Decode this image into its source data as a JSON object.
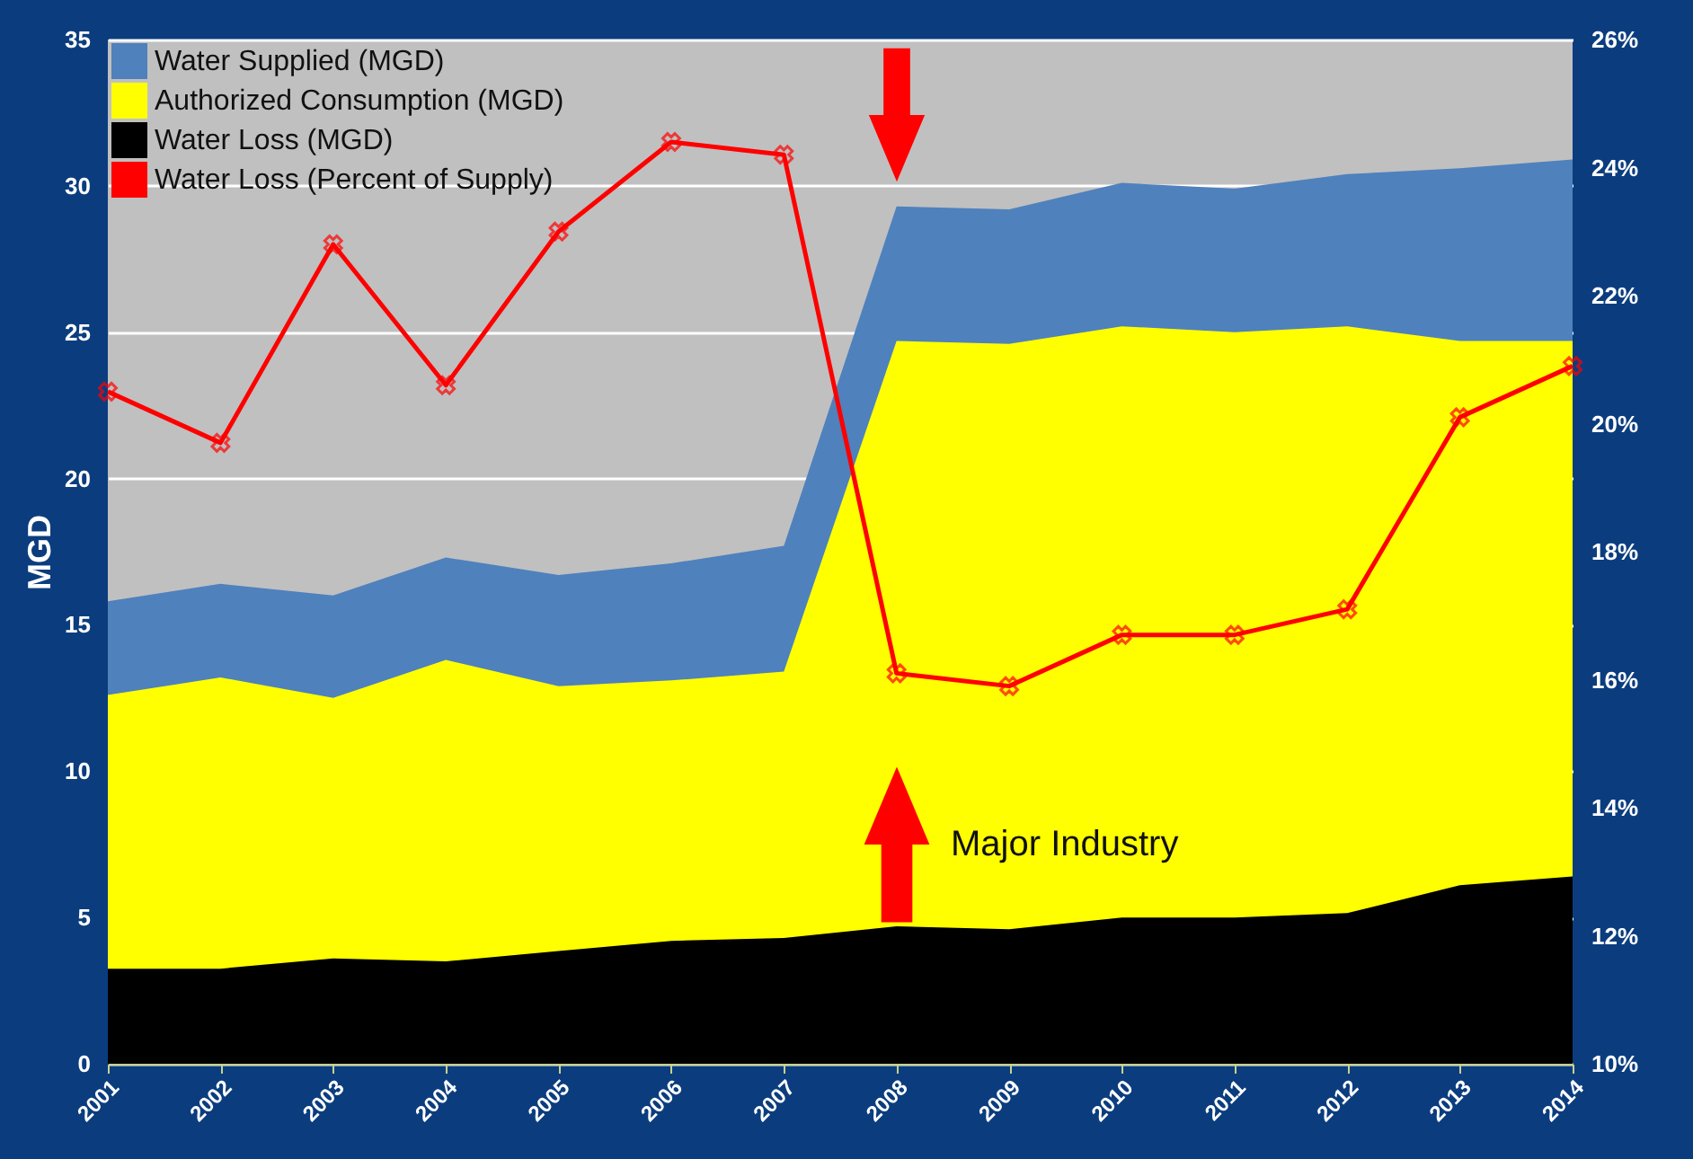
{
  "chart_data": {
    "type": "area",
    "ylabel": "MGD",
    "x": [
      2001,
      2002,
      2003,
      2004,
      2005,
      2006,
      2007,
      2008,
      2009,
      2010,
      2011,
      2012,
      2013,
      2014
    ],
    "xlim": [
      2001,
      2014
    ],
    "xticks": [
      2001,
      2002,
      2003,
      2004,
      2005,
      2006,
      2007,
      2008,
      2009,
      2010,
      2011,
      2012,
      2013,
      2014
    ],
    "ylim": [
      0,
      35
    ],
    "yticks": [
      0,
      5,
      10,
      15,
      20,
      25,
      30,
      35
    ],
    "y2lim": [
      10,
      26
    ],
    "y2ticks": [
      {
        "value": 10,
        "label": "10%"
      },
      {
        "value": 12,
        "label": "12%"
      },
      {
        "value": 14,
        "label": "14%"
      },
      {
        "value": 16,
        "label": "16%"
      },
      {
        "value": 18,
        "label": "18%"
      },
      {
        "value": 20,
        "label": "20%"
      },
      {
        "value": 22,
        "label": "22%"
      },
      {
        "value": 24,
        "label": "24%"
      },
      {
        "value": 26,
        "label": "26%"
      }
    ],
    "grid": "y",
    "legend": "top left",
    "series": [
      {
        "name": "Water Supplied (MGD)",
        "color": "#4f81bd",
        "values": [
          15.8,
          16.4,
          16.0,
          17.3,
          16.7,
          17.1,
          17.7,
          29.3,
          29.2,
          30.1,
          29.9,
          30.4,
          30.6,
          30.9
        ]
      },
      {
        "name": "Authorized Consumption (MGD)",
        "color": "#ffff00",
        "values": [
          12.6,
          13.2,
          12.5,
          13.8,
          12.9,
          13.1,
          13.4,
          24.7,
          24.6,
          25.2,
          25.0,
          25.2,
          24.7,
          24.7
        ]
      },
      {
        "name": "Water Loss (MGD)",
        "color": "#000000",
        "values": [
          3.25,
          3.25,
          3.6,
          3.5,
          3.85,
          4.2,
          4.3,
          4.7,
          4.6,
          5.0,
          5.0,
          5.15,
          6.1,
          6.4
        ]
      },
      {
        "name": "Water Loss (Percent of Supply)",
        "type": "line",
        "axis": "y2",
        "marker": "cross",
        "color": "#ff0000",
        "values": [
          20.5,
          19.7,
          22.8,
          20.6,
          23.0,
          24.4,
          24.2,
          16.1,
          15.9,
          16.7,
          16.7,
          17.1,
          20.1,
          20.9
        ]
      }
    ],
    "annotations": [
      "Major Industry"
    ]
  }
}
